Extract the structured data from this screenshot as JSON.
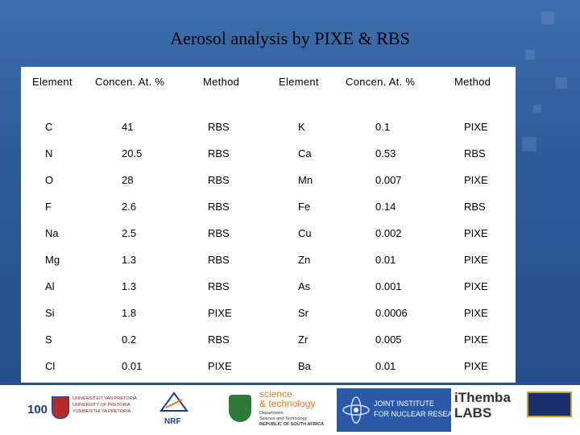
{
  "title": "Aerosol analysis by PIXE & RBS",
  "table": {
    "headers": [
      "Element",
      "Concen. At. %",
      "Method",
      "Element",
      "Concen. At. %",
      "Method"
    ],
    "rows": [
      [
        "C",
        "41",
        "RBS",
        "K",
        "0.1",
        "PIXE"
      ],
      [
        "N",
        "20.5",
        "RBS",
        "Ca",
        "0.53",
        "RBS"
      ],
      [
        "O",
        "28",
        "RBS",
        "Mn",
        "0.007",
        "PIXE"
      ],
      [
        "F",
        "2.6",
        "RBS",
        "Fe",
        "0.14",
        "RBS"
      ],
      [
        "Na",
        "2.5",
        "RBS",
        "Cu",
        "0.002",
        "PIXE"
      ],
      [
        "Mg",
        "1.3",
        "RBS",
        "Zn",
        "0.01",
        "PIXE"
      ],
      [
        "Al",
        "1.3",
        "RBS",
        "As",
        "0.001",
        "PIXE"
      ],
      [
        "Si",
        "1.8",
        "PIXE",
        "Sr",
        "0.0006",
        "PIXE"
      ],
      [
        "S",
        "0.2",
        "RBS",
        "Zr",
        "0.005",
        "PIXE"
      ],
      [
        "Cl",
        "0.01",
        "PIXE",
        "Ba",
        "0.01",
        "PIXE"
      ]
    ]
  },
  "logos": {
    "up_number": "100",
    "up_lines": [
      "UNIVERSITEIT VAN PRETORIA",
      "UNIVERSITY OF PRETORIA",
      "YUNIBESITHI YA PRETORIA"
    ],
    "nrf": "NRF",
    "dst_title_1": "science",
    "dst_title_2": "& technology",
    "dst_sub_1": "Department:",
    "dst_sub_2": "Science and Technology",
    "dst_sub_3": "REPUBLIC OF SOUTH AFRICA",
    "jinr_1": "JOINT INSTITUTE",
    "jinr_2": "FOR NUCLEAR RESEARCH",
    "ithemba_1": "iThemba",
    "ithemba_2": "LABS"
  },
  "colors": {
    "background": "#2f5f9e",
    "panel": "#ffffff",
    "text": "#000000"
  }
}
